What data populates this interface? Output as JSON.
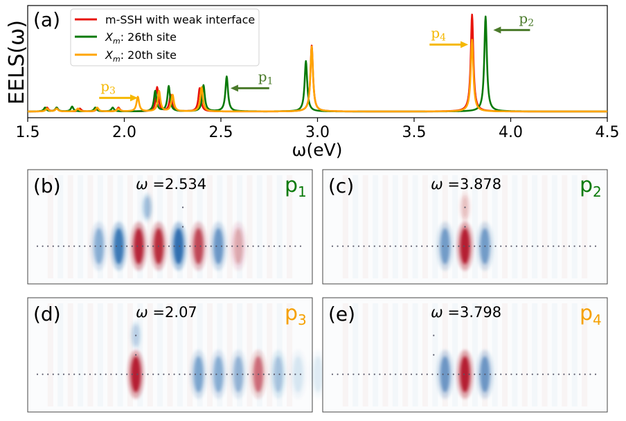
{
  "chart_data": {
    "type": "line",
    "panel_label": "(a)",
    "xlabel": "ω(eV)",
    "ylabel": "EELS(ω)",
    "xlim": [
      1.5,
      4.5
    ],
    "ylim": [
      0,
      1.05
    ],
    "xticks": [
      "1.5",
      "2.0",
      "2.5",
      "3.0",
      "3.5",
      "4.0",
      "4.5"
    ],
    "legend_position": "top-left",
    "series": [
      {
        "name": "m-SSH with weak interface",
        "color": "#e8140c",
        "peaks": [
          [
            1.6,
            0.04
          ],
          [
            1.65,
            0.04
          ],
          [
            1.77,
            0.03
          ],
          [
            1.86,
            0.03
          ],
          [
            1.97,
            0.04
          ],
          [
            2.17,
            0.25
          ],
          [
            2.24,
            0.17
          ],
          [
            2.39,
            0.24
          ],
          [
            2.97,
            0.68
          ],
          [
            3.8,
            1.0
          ]
        ]
      },
      {
        "name": "X_m: 26th site",
        "color": "#0a7a0a",
        "peaks": [
          [
            1.59,
            0.04
          ],
          [
            1.65,
            0.04
          ],
          [
            1.73,
            0.05
          ],
          [
            1.85,
            0.04
          ],
          [
            1.94,
            0.04
          ],
          [
            2.16,
            0.21
          ],
          [
            2.23,
            0.26
          ],
          [
            2.41,
            0.27
          ],
          [
            2.53,
            0.36
          ],
          [
            2.94,
            0.52
          ],
          [
            3.87,
            0.98
          ]
        ]
      },
      {
        "name": "X_m: 20th site",
        "color": "#ffa500",
        "peaks": [
          [
            1.6,
            0.03
          ],
          [
            1.65,
            0.03
          ],
          [
            1.76,
            0.03
          ],
          [
            1.86,
            0.04
          ],
          [
            1.97,
            0.03
          ],
          [
            2.07,
            0.15
          ],
          [
            2.18,
            0.21
          ],
          [
            2.25,
            0.17
          ],
          [
            2.4,
            0.25
          ],
          [
            2.97,
            0.67
          ],
          [
            3.8,
            0.74
          ]
        ]
      }
    ],
    "annotations": [
      {
        "label": "p",
        "sub": "1",
        "color": "#4a7a2a",
        "direction": "left",
        "x_start": 2.75,
        "x_end": 2.55,
        "y": 0.24
      },
      {
        "label": "p",
        "sub": "2",
        "color": "#4a7a2a",
        "direction": "left",
        "x_start": 4.1,
        "x_end": 3.91,
        "y": 0.84
      },
      {
        "label": "p",
        "sub": "3",
        "color": "#f5b800",
        "direction": "right",
        "x_start": 1.87,
        "x_end": 2.07,
        "y": 0.14
      },
      {
        "label": "p",
        "sub": "4",
        "color": "#f5b800",
        "direction": "right",
        "x_start": 3.58,
        "x_end": 3.78,
        "y": 0.69
      }
    ]
  },
  "panels": [
    {
      "label": "(b)",
      "omega_prefix": "ω =",
      "omega_value": "2.534",
      "mode": "p",
      "mode_sub": "1",
      "mode_color": "#0a7a0a",
      "blobs": [
        [
          -0.08,
          0.35,
          -0.25
        ],
        [
          -0.25,
          0.45,
          0.9
        ],
        [
          -0.18,
          0.85,
          1
        ],
        [
          -0.11,
          -0.95,
          1
        ],
        [
          -0.04,
          -0.9,
          1
        ],
        [
          0.03,
          0.95,
          1
        ],
        [
          0.1,
          -0.75,
          1
        ],
        [
          0.17,
          0.6,
          1
        ],
        [
          0.24,
          -0.3,
          1
        ]
      ]
    },
    {
      "label": "(c)",
      "omega_prefix": "ω =",
      "omega_value": "3.878",
      "mode": "p",
      "mode_sub": "2",
      "mode_color": "#0a7a0a",
      "blobs": [
        [
          0.0,
          -0.2,
          -0.35
        ],
        [
          -0.07,
          0.55,
          1
        ],
        [
          0.0,
          -1.0,
          1
        ],
        [
          0.07,
          0.55,
          1
        ]
      ]
    },
    {
      "label": "(d)",
      "omega_prefix": "ω =",
      "omega_value": "2.07",
      "mode": "p",
      "mode_sub": "3",
      "mode_color": "#f5a000",
      "blobs": [
        [
          -0.12,
          0.25,
          -0.4
        ],
        [
          -0.12,
          -1.0,
          1
        ],
        [
          0.1,
          0.5,
          1
        ],
        [
          0.17,
          0.45,
          1
        ],
        [
          0.24,
          0.4,
          1
        ],
        [
          0.31,
          -0.55,
          1
        ],
        [
          0.38,
          0.3,
          1
        ],
        [
          0.45,
          0.12,
          1
        ],
        [
          0.52,
          0.1,
          1
        ]
      ]
    },
    {
      "label": "(e)",
      "omega_prefix": "ω =",
      "omega_value": "3.798",
      "mode": "p",
      "mode_sub": "4",
      "mode_color": "#f5a000",
      "blobs": [
        [
          -0.07,
          0.6,
          1
        ],
        [
          0.0,
          -1.0,
          1
        ],
        [
          0.07,
          0.6,
          1
        ]
      ]
    }
  ]
}
